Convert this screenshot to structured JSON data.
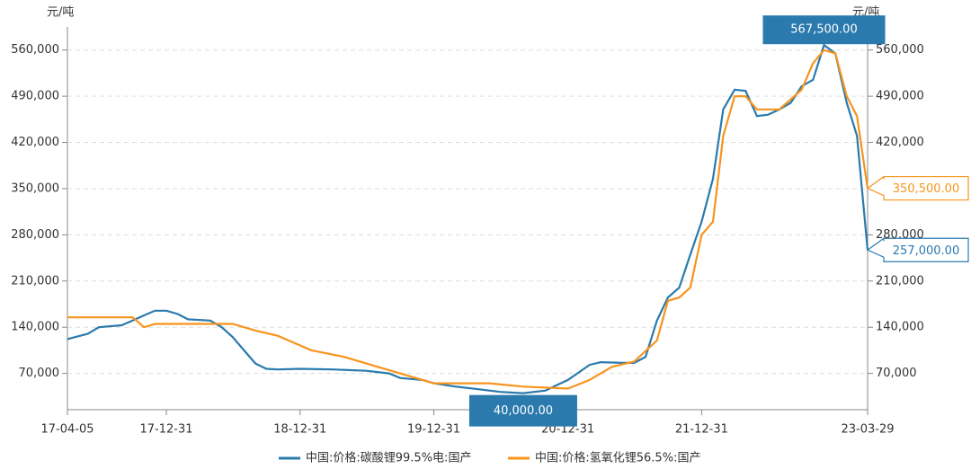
{
  "chart_data": {
    "type": "line",
    "ylabel": "元/吨",
    "y2label": "元/吨",
    "xlim": [
      "17-04-05",
      "23-03-29"
    ],
    "xticks": [
      "17-04-05",
      "17-12-31",
      "18-12-31",
      "19-12-31",
      "20-12-31",
      "21-12-31",
      "23-03-29"
    ],
    "ylim": [
      15000,
      595000
    ],
    "yticks": [
      {
        "value": 70000,
        "label": "70,000"
      },
      {
        "value": 140000,
        "label": "140,000"
      },
      {
        "value": 210000,
        "label": "210,000"
      },
      {
        "value": 280000,
        "label": "280,000"
      },
      {
        "value": 350000,
        "label": "350,000"
      },
      {
        "value": 420000,
        "label": "420,000"
      },
      {
        "value": 490000,
        "label": "490,000"
      },
      {
        "value": 560000,
        "label": "560,000"
      }
    ],
    "grid": true,
    "legend": "bottom",
    "series": [
      {
        "name": "中国:价格:碳酸锂99.5%电:国产",
        "color": "#2a7aad",
        "x": [
          "17-04-05",
          "17-05-31",
          "17-06-30",
          "17-08-31",
          "17-09-30",
          "17-10-31",
          "17-11-30",
          "17-12-31",
          "18-01-31",
          "18-02-28",
          "18-04-30",
          "18-05-31",
          "18-06-30",
          "18-07-31",
          "18-08-31",
          "18-09-30",
          "18-10-31",
          "18-12-31",
          "19-03-31",
          "19-06-30",
          "19-08-31",
          "19-09-30",
          "19-11-30",
          "19-12-31",
          "20-02-29",
          "20-04-30",
          "20-06-30",
          "20-08-31",
          "20-10-31",
          "20-11-30",
          "20-12-31",
          "21-01-31",
          "21-02-28",
          "21-03-31",
          "21-05-31",
          "21-06-30",
          "21-07-31",
          "21-08-31",
          "21-09-30",
          "21-10-31",
          "21-11-30",
          "21-12-31",
          "22-01-31",
          "22-02-28",
          "22-03-31",
          "22-04-30",
          "22-05-31",
          "22-06-30",
          "22-07-31",
          "22-08-31",
          "22-09-30",
          "22-10-31",
          "22-11-30",
          "22-12-31",
          "23-01-31",
          "23-02-28",
          "23-03-29"
        ],
        "values": [
          122000,
          130000,
          140000,
          143000,
          150000,
          158000,
          165000,
          165000,
          160000,
          152000,
          150000,
          140000,
          125000,
          105000,
          85000,
          77000,
          76000,
          77000,
          76000,
          74000,
          70000,
          63000,
          60000,
          55000,
          50000,
          46000,
          42000,
          40000,
          44000,
          52000,
          60000,
          72000,
          83000,
          87000,
          86000,
          86000,
          95000,
          150000,
          185000,
          200000,
          250000,
          300000,
          365000,
          470000,
          500000,
          498000,
          460000,
          462000,
          470000,
          480000,
          505000,
          515000,
          567500,
          555000,
          480000,
          430000,
          257000
        ]
      },
      {
        "name": "中国:价格:氢氧化锂56.5%:国产",
        "color": "#f7941d",
        "x": [
          "17-04-05",
          "17-09-30",
          "17-10-31",
          "17-11-30",
          "17-12-31",
          "18-06-30",
          "18-08-31",
          "18-10-31",
          "19-01-31",
          "19-04-30",
          "19-07-31",
          "19-10-31",
          "19-12-31",
          "20-05-31",
          "20-08-31",
          "20-12-31",
          "21-02-28",
          "21-04-30",
          "21-06-30",
          "21-08-31",
          "21-09-30",
          "21-10-31",
          "21-11-30",
          "21-12-31",
          "22-01-31",
          "22-02-28",
          "22-03-31",
          "22-04-30",
          "22-05-31",
          "22-07-31",
          "22-09-30",
          "22-10-31",
          "22-11-30",
          "22-12-31",
          "23-01-31",
          "23-02-28",
          "23-03-29"
        ],
        "values": [
          155000,
          155000,
          140000,
          145000,
          145000,
          145000,
          135000,
          127000,
          105000,
          95000,
          80000,
          65000,
          55000,
          55000,
          50000,
          47000,
          60000,
          80000,
          88000,
          120000,
          180000,
          185000,
          200000,
          280000,
          300000,
          430000,
          490000,
          490000,
          470000,
          470000,
          500000,
          540000,
          560000,
          555000,
          490000,
          460000,
          350500
        ]
      }
    ],
    "annotations": [
      {
        "label": "567,500.00",
        "value": 567500,
        "x": "22-11-30",
        "color": "#2a7aad"
      },
      {
        "label": "40,000.00",
        "value": 40000,
        "x": "20-08-31",
        "color": "#2a7aad"
      },
      {
        "label": "350,500.00",
        "value": 350500,
        "x": "23-03-29",
        "color": "#f7941d"
      },
      {
        "label": "257,000.00",
        "value": 257000,
        "x": "23-03-29",
        "color": "#2a7aad"
      }
    ]
  }
}
